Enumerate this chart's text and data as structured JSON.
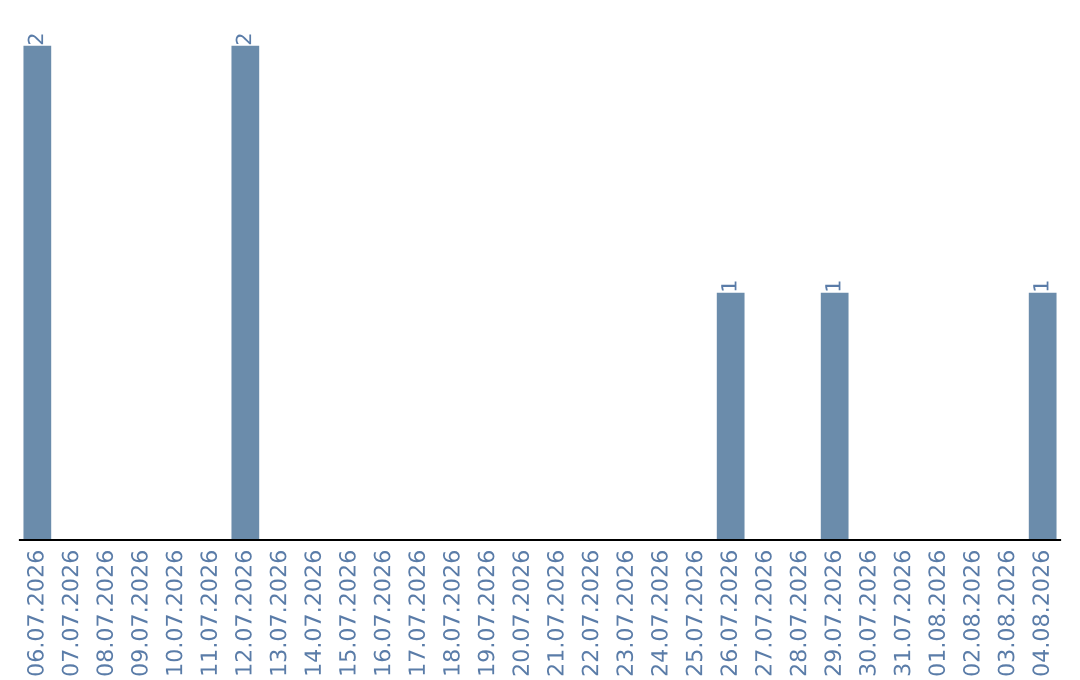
{
  "chart_data": {
    "type": "bar",
    "categories": [
      "06.07.2026",
      "07.07.2026",
      "08.07.2026",
      "09.07.2026",
      "10.07.2026",
      "11.07.2026",
      "12.07.2026",
      "13.07.2026",
      "14.07.2026",
      "15.07.2026",
      "16.07.2026",
      "17.07.2026",
      "18.07.2026",
      "19.07.2026",
      "20.07.2026",
      "21.07.2026",
      "22.07.2026",
      "23.07.2026",
      "24.07.2026",
      "25.07.2026",
      "26.07.2026",
      "27.07.2026",
      "28.07.2026",
      "29.07.2026",
      "30.07.2026",
      "31.07.2026",
      "01.08.2026",
      "02.08.2026",
      "03.08.2026",
      "04.08.2026"
    ],
    "values": [
      2,
      0,
      0,
      0,
      0,
      0,
      2,
      0,
      0,
      0,
      0,
      0,
      0,
      0,
      0,
      0,
      0,
      0,
      0,
      0,
      1,
      0,
      0,
      1,
      0,
      0,
      0,
      0,
      0,
      1
    ],
    "value_labels": [
      "2",
      null,
      null,
      null,
      null,
      null,
      "2",
      null,
      null,
      null,
      null,
      null,
      null,
      null,
      null,
      null,
      null,
      null,
      null,
      null,
      "1",
      null,
      null,
      "1",
      null,
      null,
      null,
      null,
      null,
      "1"
    ],
    "color": "#6b8cab",
    "tick_labels": "x",
    "grid": false,
    "legend": false
  }
}
